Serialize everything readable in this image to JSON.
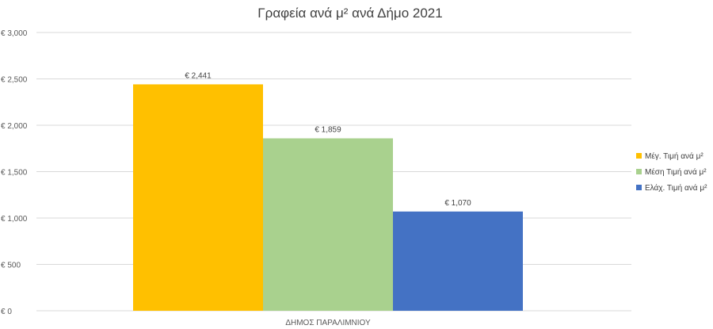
{
  "chart_data": {
    "type": "bar",
    "title": "Γραφεία ανά μ² ανά Δήμο 2021",
    "categories": [
      "ΔΗΜΟΣ ΠΑΡΑΛΙΜΝΙΟΥ"
    ],
    "series": [
      {
        "name": "Μέγ. Τιμή ανά μ²",
        "values": [
          2441
        ],
        "label": "€ 2,441",
        "color": "#FFC000"
      },
      {
        "name": "Μέση Τιμή ανά μ²",
        "values": [
          1859
        ],
        "label": "€ 1,859",
        "color": "#A9D18E"
      },
      {
        "name": "Ελάχ. Τιμή ανά μ²",
        "values": [
          1070
        ],
        "label": "€ 1,070",
        "color": "#4472C4"
      }
    ],
    "y_ticks": [
      {
        "value": 0,
        "label": "€ 0"
      },
      {
        "value": 500,
        "label": "€ 500"
      },
      {
        "value": 1000,
        "label": "€ 1,000"
      },
      {
        "value": 1500,
        "label": "€ 1,500"
      },
      {
        "value": 2000,
        "label": "€ 2,000"
      },
      {
        "value": 2500,
        "label": "€ 2,500"
      },
      {
        "value": 3000,
        "label": "€ 3,000"
      }
    ],
    "ylim": [
      0,
      3000
    ],
    "grid": true,
    "legend_position": "right"
  }
}
